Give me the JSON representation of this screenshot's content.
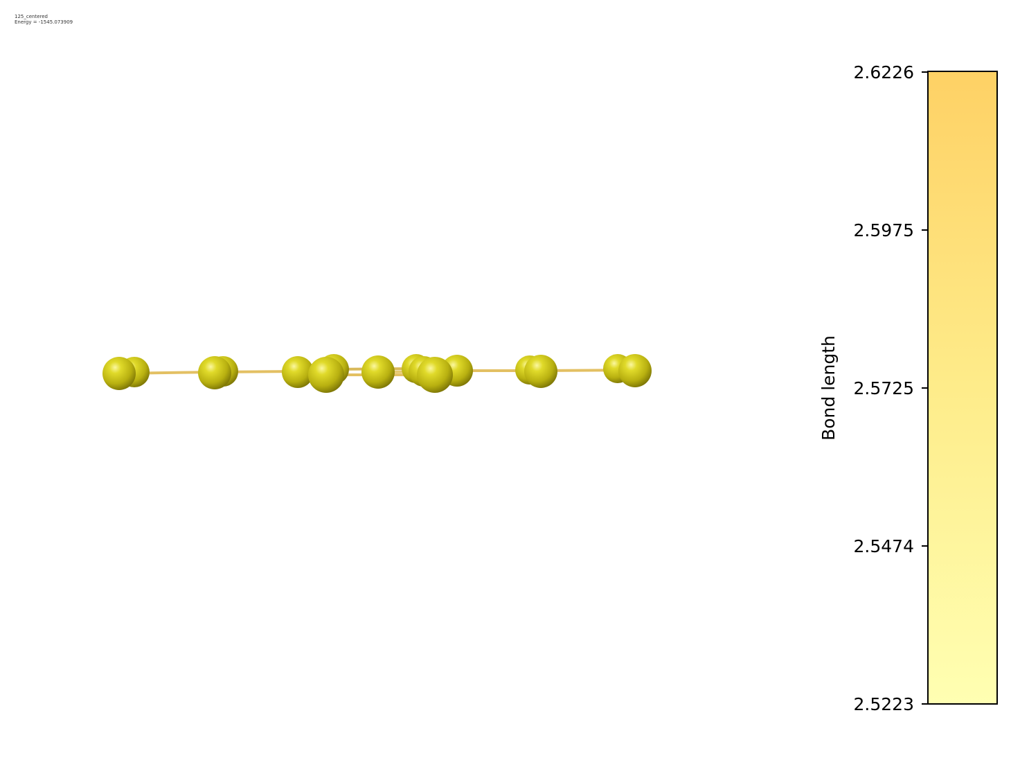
{
  "caption": {
    "name": "125_centered",
    "energy": "Energy = -1545.073909"
  },
  "colorbar": {
    "label": "Bond length",
    "ticks": [
      "2.6226",
      "2.5975",
      "2.5725",
      "2.5474",
      "2.5223"
    ],
    "min": 2.5223,
    "max": 2.6226,
    "color_low": "#ffffb2",
    "color_high": "#fed165"
  },
  "molecule": {
    "atom_color": "#c8c216",
    "bond_color": "#e3c063",
    "view": "edge-on planar cluster",
    "atom_count": 18
  }
}
